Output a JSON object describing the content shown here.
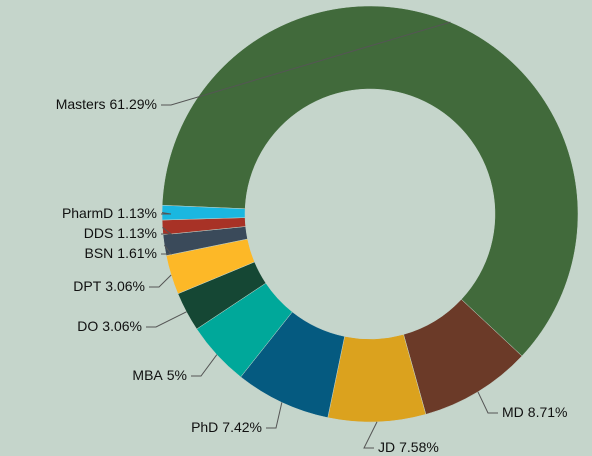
{
  "chart_data": {
    "type": "donut",
    "categories": [
      "Masters",
      "MD",
      "JD",
      "PhD",
      "MBA",
      "DO",
      "DPT",
      "BSN",
      "DDS",
      "PharmD"
    ],
    "values": [
      61.29,
      8.71,
      7.58,
      7.42,
      5,
      3.06,
      3.06,
      1.61,
      1.13,
      1.13
    ],
    "value_labels": [
      "61.29%",
      "8.71%",
      "7.58%",
      "7.42%",
      "5%",
      "3.06%",
      "3.06%",
      "1.61%",
      "1.13%",
      "1.13%"
    ],
    "colors": [
      "#416a3b",
      "#6b3a28",
      "#dba21e",
      "#055a80",
      "#00a89a",
      "#154734",
      "#fdb827",
      "#3a4a5a",
      "#a83226",
      "#1ab7e0"
    ]
  }
}
